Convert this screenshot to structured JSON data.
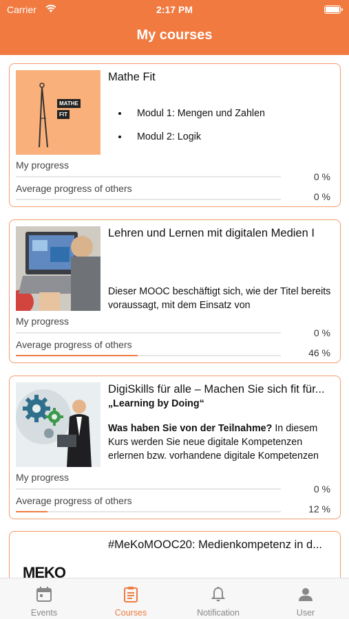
{
  "status_bar": {
    "carrier": "Carrier",
    "time": "2:17 PM"
  },
  "header": {
    "title": "My courses"
  },
  "courses": [
    {
      "title": "Mathe Fit",
      "thumb_text": [
        "MATHE",
        "FIT"
      ],
      "modules": [
        "Modul 1: Mengen und Zahlen",
        "Modul 2: Logik"
      ],
      "my_progress_label": "My progress",
      "my_progress": "0 %",
      "my_progress_value": 0,
      "avg_progress_label": "Average progress of others",
      "avg_progress": "0 %",
      "avg_progress_value": 0
    },
    {
      "title": "Lehren und Lernen mit digitalen Medien I",
      "description": "Dieser MOOC beschäftigt sich, wie der Titel bereits voraussagt, mit dem Einsatz von",
      "my_progress_label": "My progress",
      "my_progress": "0 %",
      "my_progress_value": 0,
      "avg_progress_label": "Average progress of others",
      "avg_progress": "46 %",
      "avg_progress_value": 46
    },
    {
      "title": "DigiSkills für alle – Machen Sie sich fit für...",
      "subtitle": "„Learning by Doing“",
      "description_bold": "Was haben Sie von der Teilnahme?",
      "description": " In diesem Kurs werden Sie neue digitale Kompetenzen erlernen bzw. vorhandene digitale Kompetenzen",
      "my_progress_label": "My progress",
      "my_progress": "0 %",
      "my_progress_value": 0,
      "avg_progress_label": "Average progress of others",
      "avg_progress": "12 %",
      "avg_progress_value": 12
    },
    {
      "title": "#MeKoMOOC20: Medienkompetenz in d...",
      "thumb_text": "MEKO"
    }
  ],
  "tabs": [
    {
      "label": "Events",
      "icon": "calendar-icon",
      "active": false
    },
    {
      "label": "Courses",
      "icon": "clipboard-icon",
      "active": true
    },
    {
      "label": "Notification",
      "icon": "bell-icon",
      "active": false
    },
    {
      "label": "User",
      "icon": "user-icon",
      "active": false
    }
  ],
  "colors": {
    "accent": "#f07a40",
    "card_border": "#f29a6b"
  }
}
